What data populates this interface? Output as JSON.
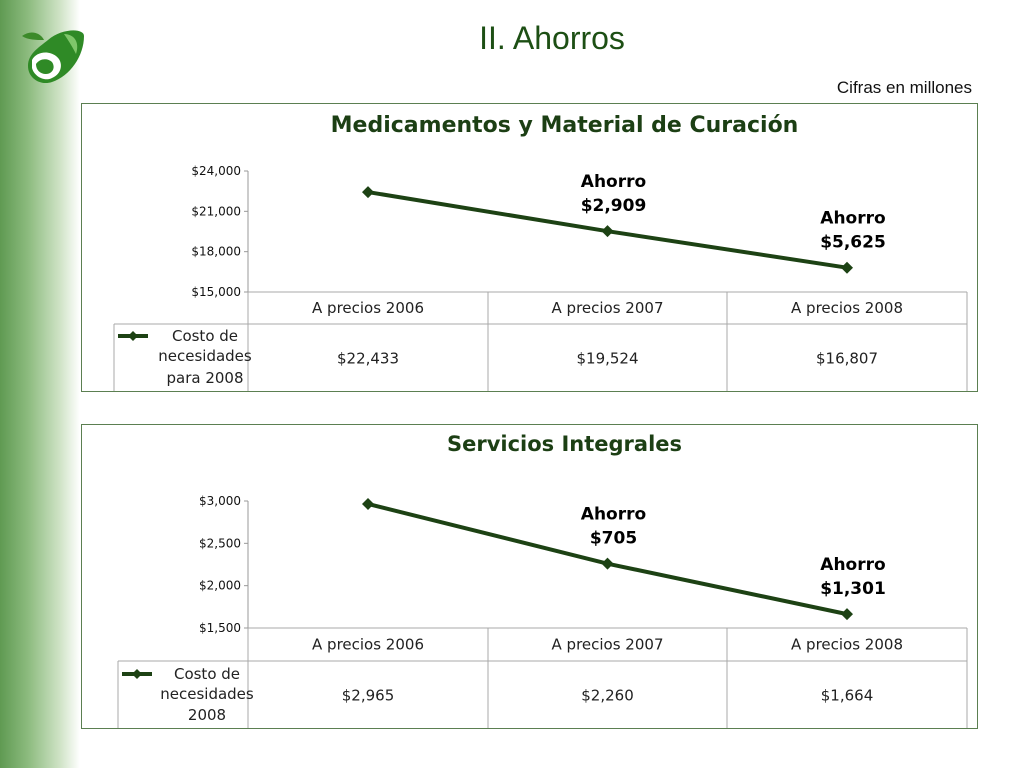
{
  "slide": {
    "title": "II. Ahorros",
    "subtitle": "Cifras en millones"
  },
  "colors": {
    "line": "#1d4214",
    "title": "#1d4f14",
    "border": "#5b7f51"
  },
  "chart_data": [
    {
      "type": "line",
      "title": "Medicamentos y Material de Curación",
      "categories": [
        "A precios 2006",
        "A precios 2007",
        "A precios 2008"
      ],
      "series": [
        {
          "name": "Costo de necesidades para 2008",
          "legend_lines": [
            "Costo de",
            "necesidades",
            "para 2008"
          ],
          "values": [
            22433,
            19524,
            16807
          ]
        }
      ],
      "data_table": [
        "$22,433",
        "$19,524",
        "$16,807"
      ],
      "y_ticks": [
        15000,
        18000,
        21000,
        24000
      ],
      "y_tick_labels": [
        "$15,000",
        "$18,000",
        "$21,000",
        "$24,000"
      ],
      "ylim": [
        15000,
        24000
      ],
      "annotations": [
        {
          "category_index": 1,
          "lines": [
            "Ahorro",
            "$2,909"
          ]
        },
        {
          "category_index": 2,
          "lines": [
            "Ahorro",
            "$5,625"
          ]
        }
      ],
      "grid": false
    },
    {
      "type": "line",
      "title": "Servicios Integrales",
      "categories": [
        "A precios 2006",
        "A precios 2007",
        "A precios 2008"
      ],
      "series": [
        {
          "name": "Costo de necesidades 2008",
          "legend_lines": [
            "Costo de",
            "necesidades",
            "2008"
          ],
          "values": [
            2965,
            2260,
            1664
          ]
        }
      ],
      "data_table": [
        "$2,965",
        "$2,260",
        "$1,664"
      ],
      "y_ticks": [
        1500,
        2000,
        2500,
        3000
      ],
      "y_tick_labels": [
        "$1,500",
        "$2,000",
        "$2,500",
        "$3,000"
      ],
      "ylim": [
        1500,
        3000
      ],
      "annotations": [
        {
          "category_index": 1,
          "lines": [
            "Ahorro",
            "$705"
          ]
        },
        {
          "category_index": 2,
          "lines": [
            "Ahorro",
            "$1,301"
          ]
        }
      ],
      "grid": false
    }
  ]
}
